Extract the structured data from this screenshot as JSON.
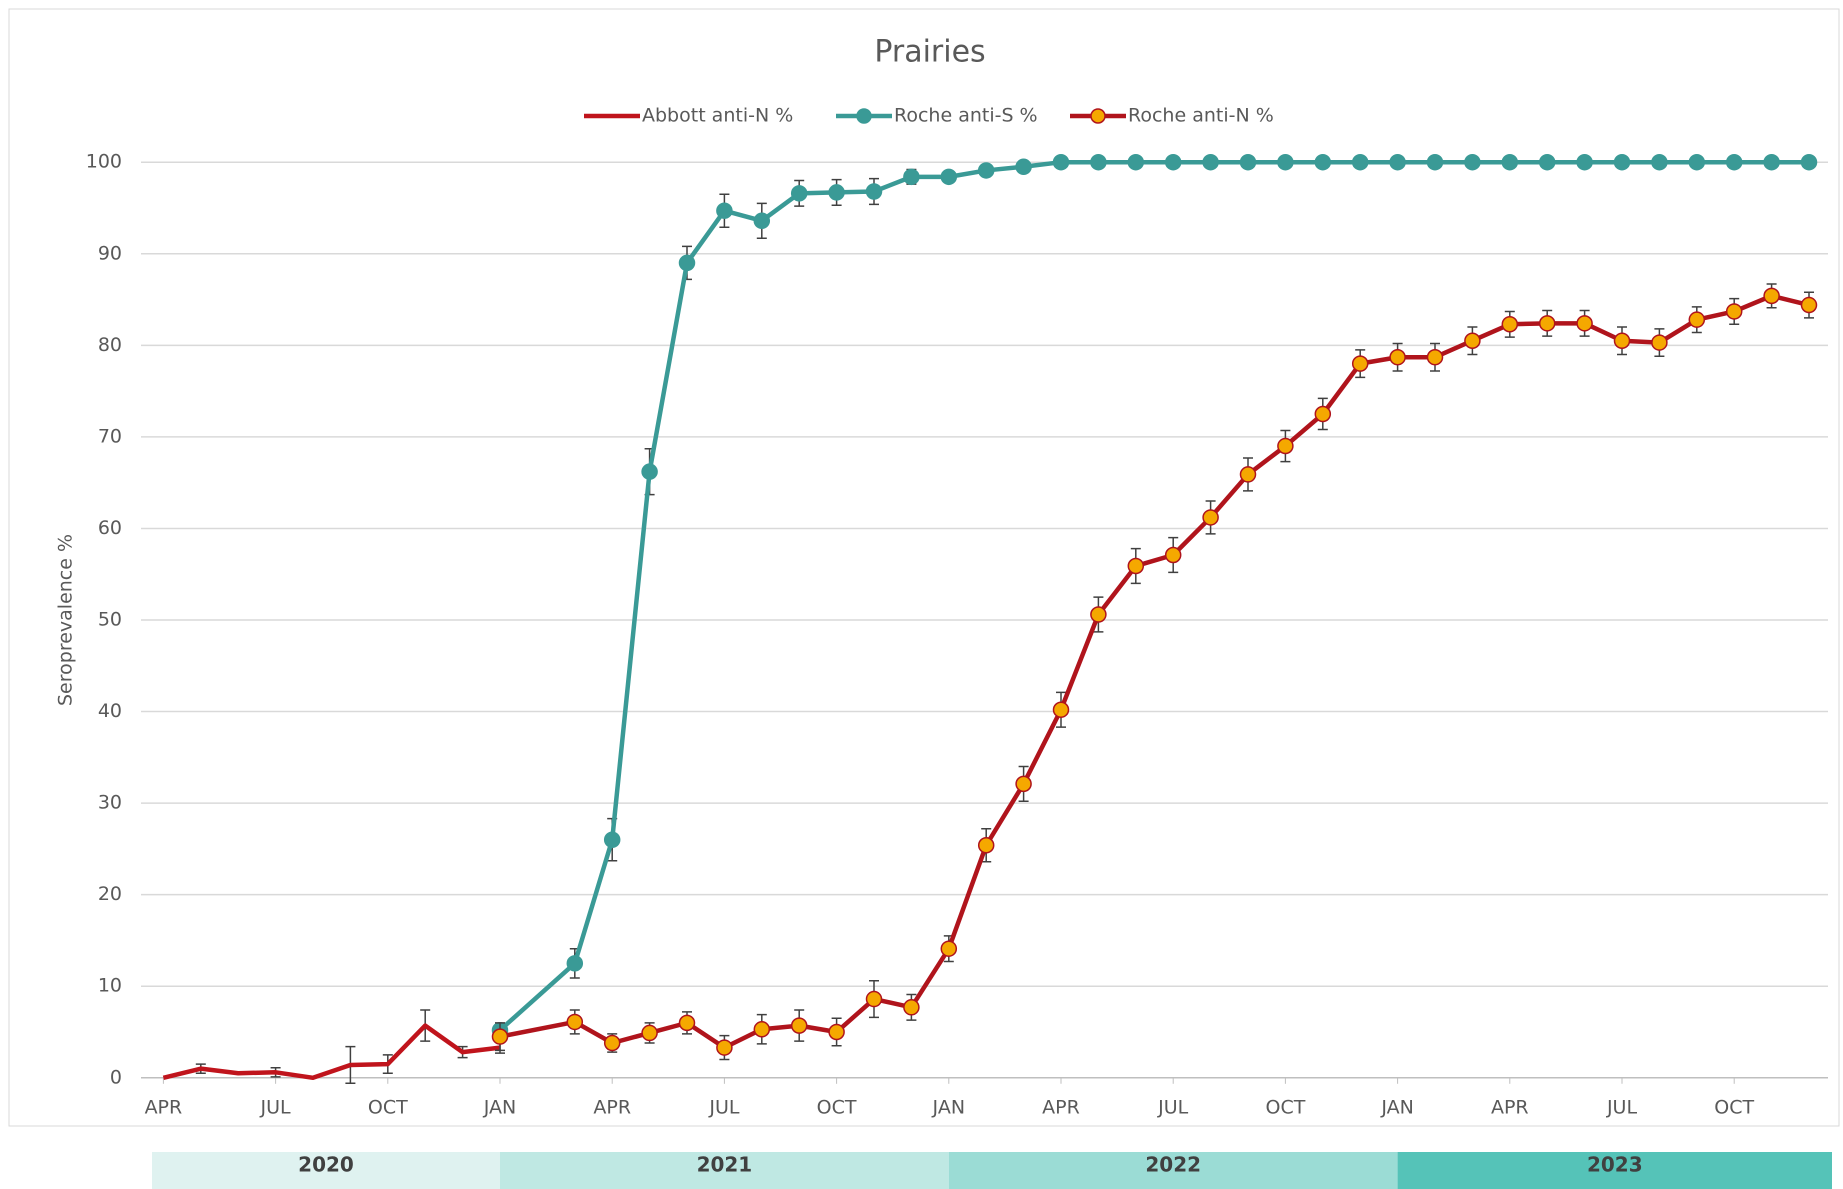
{
  "chart_data": {
    "type": "line",
    "title": "Prairies",
    "y_label": "Seroprevalence %",
    "legend": "top",
    "grid": true,
    "ylim": [
      0,
      100
    ],
    "yticks": [
      0,
      10,
      20,
      30,
      40,
      50,
      60,
      70,
      80,
      90,
      100
    ],
    "xlim": [
      "2020-04",
      "2023-12"
    ],
    "xticks": [
      {
        "value": "2020-04",
        "label": "APR"
      },
      {
        "value": "2020-07",
        "label": "JUL"
      },
      {
        "value": "2020-10",
        "label": "OCT"
      },
      {
        "value": "2021-01",
        "label": "JAN"
      },
      {
        "value": "2021-04",
        "label": "APR"
      },
      {
        "value": "2021-07",
        "label": "JUL"
      },
      {
        "value": "2021-10",
        "label": "OCT"
      },
      {
        "value": "2022-01",
        "label": "JAN"
      },
      {
        "value": "2022-04",
        "label": "APR"
      },
      {
        "value": "2022-07",
        "label": "JUL"
      },
      {
        "value": "2022-10",
        "label": "OCT"
      },
      {
        "value": "2023-01",
        "label": "JAN"
      },
      {
        "value": "2023-04",
        "label": "APR"
      },
      {
        "value": "2023-07",
        "label": "JUL"
      },
      {
        "value": "2023-10",
        "label": "OCT"
      }
    ],
    "year_bands": [
      {
        "label": "2020",
        "color": "#dff2f0"
      },
      {
        "label": "2021",
        "color": "#bfe8e3"
      },
      {
        "label": "2022",
        "color": "#9bdcd5"
      },
      {
        "label": "2023",
        "color": "#55c3b8"
      }
    ],
    "series": [
      {
        "name": "Abbott anti-N %",
        "color": "#c0141c",
        "marker": false,
        "x": [
          "2020-04",
          "2020-05",
          "2020-06",
          "2020-07",
          "2020-08",
          "2020-09",
          "2020-10",
          "2020-11",
          "2020-12",
          "2021-01"
        ],
        "values": [
          0,
          1.0,
          0.5,
          0.6,
          0,
          1.4,
          1.5,
          5.7,
          2.8,
          3.3
        ],
        "errors": [
          null,
          0.5,
          null,
          0.5,
          null,
          2.0,
          1.0,
          1.7,
          0.6,
          0.6
        ]
      },
      {
        "name": "Roche anti-S %",
        "color": "#3a9a96",
        "marker": true,
        "marker_color": "#3a9a96",
        "x": [
          "2021-01",
          "2021-03",
          "2021-04",
          "2021-05",
          "2021-06",
          "2021-07",
          "2021-08",
          "2021-09",
          "2021-10",
          "2021-11",
          "2021-12",
          "2022-01",
          "2022-02",
          "2022-03",
          "2022-04",
          "2022-05",
          "2022-06",
          "2022-07",
          "2022-08",
          "2022-09",
          "2022-10",
          "2022-11",
          "2022-12",
          "2023-01",
          "2023-02",
          "2023-03",
          "2023-04",
          "2023-05",
          "2023-06",
          "2023-07",
          "2023-08",
          "2023-09",
          "2023-10",
          "2023-11",
          "2023-12"
        ],
        "values": [
          5.2,
          12.5,
          26.0,
          66.2,
          89.0,
          94.7,
          93.6,
          96.6,
          96.7,
          96.8,
          98.4,
          98.4,
          99.1,
          99.5,
          100,
          100,
          100,
          100,
          100,
          100,
          100,
          100,
          100,
          100,
          100,
          100,
          100,
          100,
          100,
          100,
          100,
          100,
          100,
          100,
          100
        ],
        "errors": [
          null,
          1.6,
          2.3,
          2.5,
          1.8,
          1.8,
          1.9,
          1.4,
          1.4,
          1.4,
          0.8,
          null,
          null,
          null,
          null,
          null,
          null,
          null,
          null,
          null,
          null,
          null,
          null,
          null,
          null,
          null,
          null,
          null,
          null,
          null,
          null,
          null,
          null,
          null,
          null
        ]
      },
      {
        "name": "Roche anti-N %",
        "color": "#b0141c",
        "marker": true,
        "marker_color": "#f5a800",
        "x": [
          "2021-01",
          "2021-03",
          "2021-04",
          "2021-05",
          "2021-06",
          "2021-07",
          "2021-08",
          "2021-09",
          "2021-10",
          "2021-11",
          "2021-12",
          "2022-01",
          "2022-02",
          "2022-03",
          "2022-04",
          "2022-05",
          "2022-06",
          "2022-07",
          "2022-08",
          "2022-09",
          "2022-10",
          "2022-11",
          "2022-12",
          "2023-01",
          "2023-02",
          "2023-03",
          "2023-04",
          "2023-05",
          "2023-06",
          "2023-07",
          "2023-08",
          "2023-09",
          "2023-10",
          "2023-11",
          "2023-12"
        ],
        "values": [
          4.5,
          6.1,
          3.8,
          4.9,
          6.0,
          3.3,
          5.3,
          5.7,
          5.0,
          8.6,
          7.7,
          14.1,
          25.4,
          32.1,
          40.2,
          50.6,
          55.9,
          57.1,
          61.2,
          65.9,
          69.0,
          72.5,
          78.0,
          78.7,
          78.7,
          80.5,
          82.3,
          82.4,
          82.4,
          80.5,
          80.3,
          82.8,
          83.7,
          85.4,
          84.4
        ],
        "errors": [
          1.5,
          1.3,
          1.0,
          1.1,
          1.2,
          1.3,
          1.6,
          1.7,
          1.5,
          2.0,
          1.4,
          1.4,
          1.8,
          1.9,
          1.9,
          1.9,
          1.9,
          1.9,
          1.8,
          1.8,
          1.7,
          1.7,
          1.5,
          1.5,
          1.5,
          1.5,
          1.4,
          1.4,
          1.4,
          1.5,
          1.5,
          1.4,
          1.4,
          1.3,
          1.4
        ]
      }
    ]
  }
}
